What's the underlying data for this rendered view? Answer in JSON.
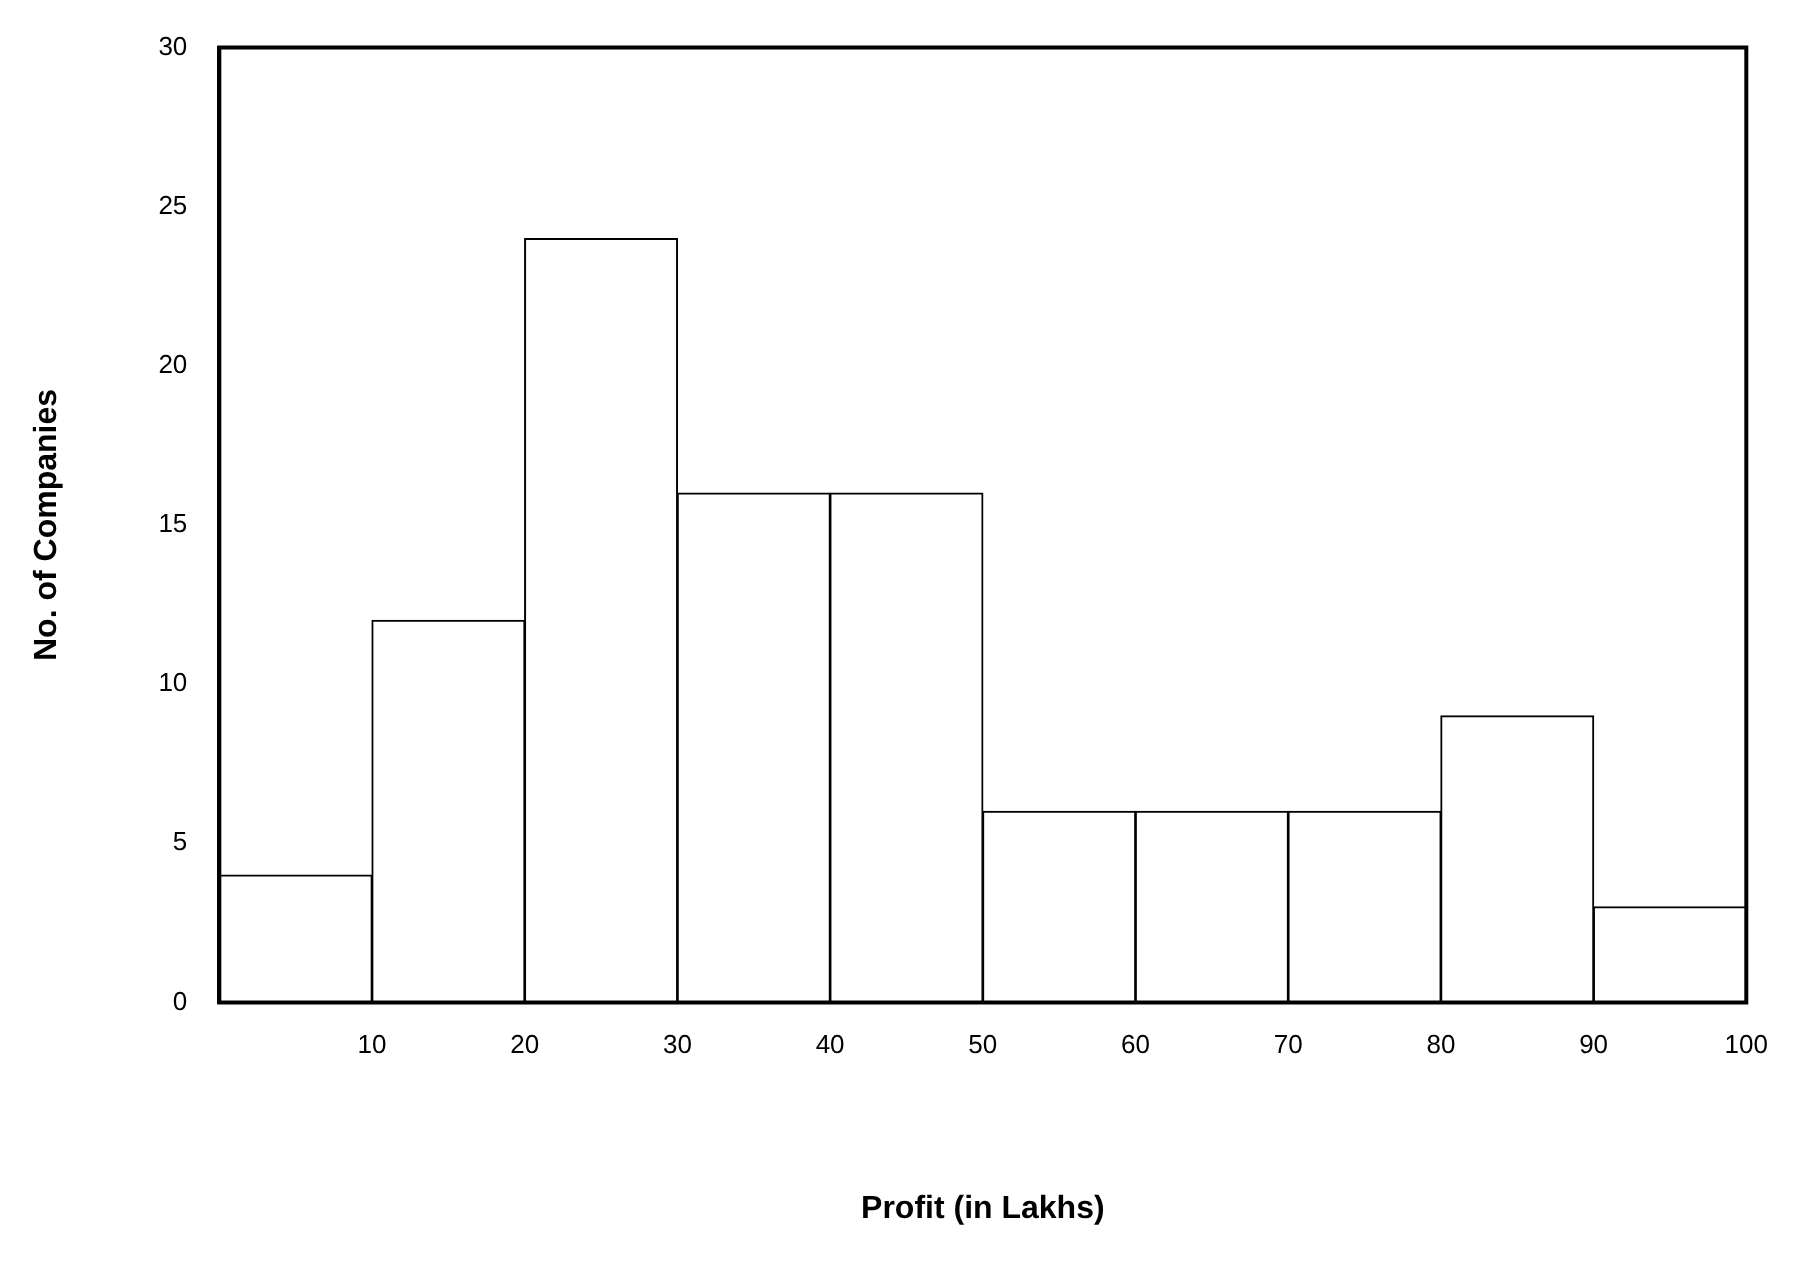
{
  "chart_data": {
    "type": "histogram",
    "xlabel": "Profit (in Lakhs)",
    "ylabel": "No. of Companies",
    "bins": [
      0,
      10,
      20,
      30,
      40,
      50,
      60,
      70,
      80,
      90,
      100
    ],
    "values": [
      4,
      12,
      24,
      16,
      16,
      6,
      6,
      6,
      9,
      3
    ],
    "color": "#ffffff",
    "xlim": [
      0,
      100
    ],
    "xticks": [
      10,
      20,
      30,
      40,
      50,
      60,
      70,
      80,
      90,
      100
    ],
    "ylim": [
      0,
      30
    ],
    "yticks": [
      0,
      5,
      10,
      15,
      20,
      25,
      30
    ],
    "grid": false,
    "legend": false
  }
}
